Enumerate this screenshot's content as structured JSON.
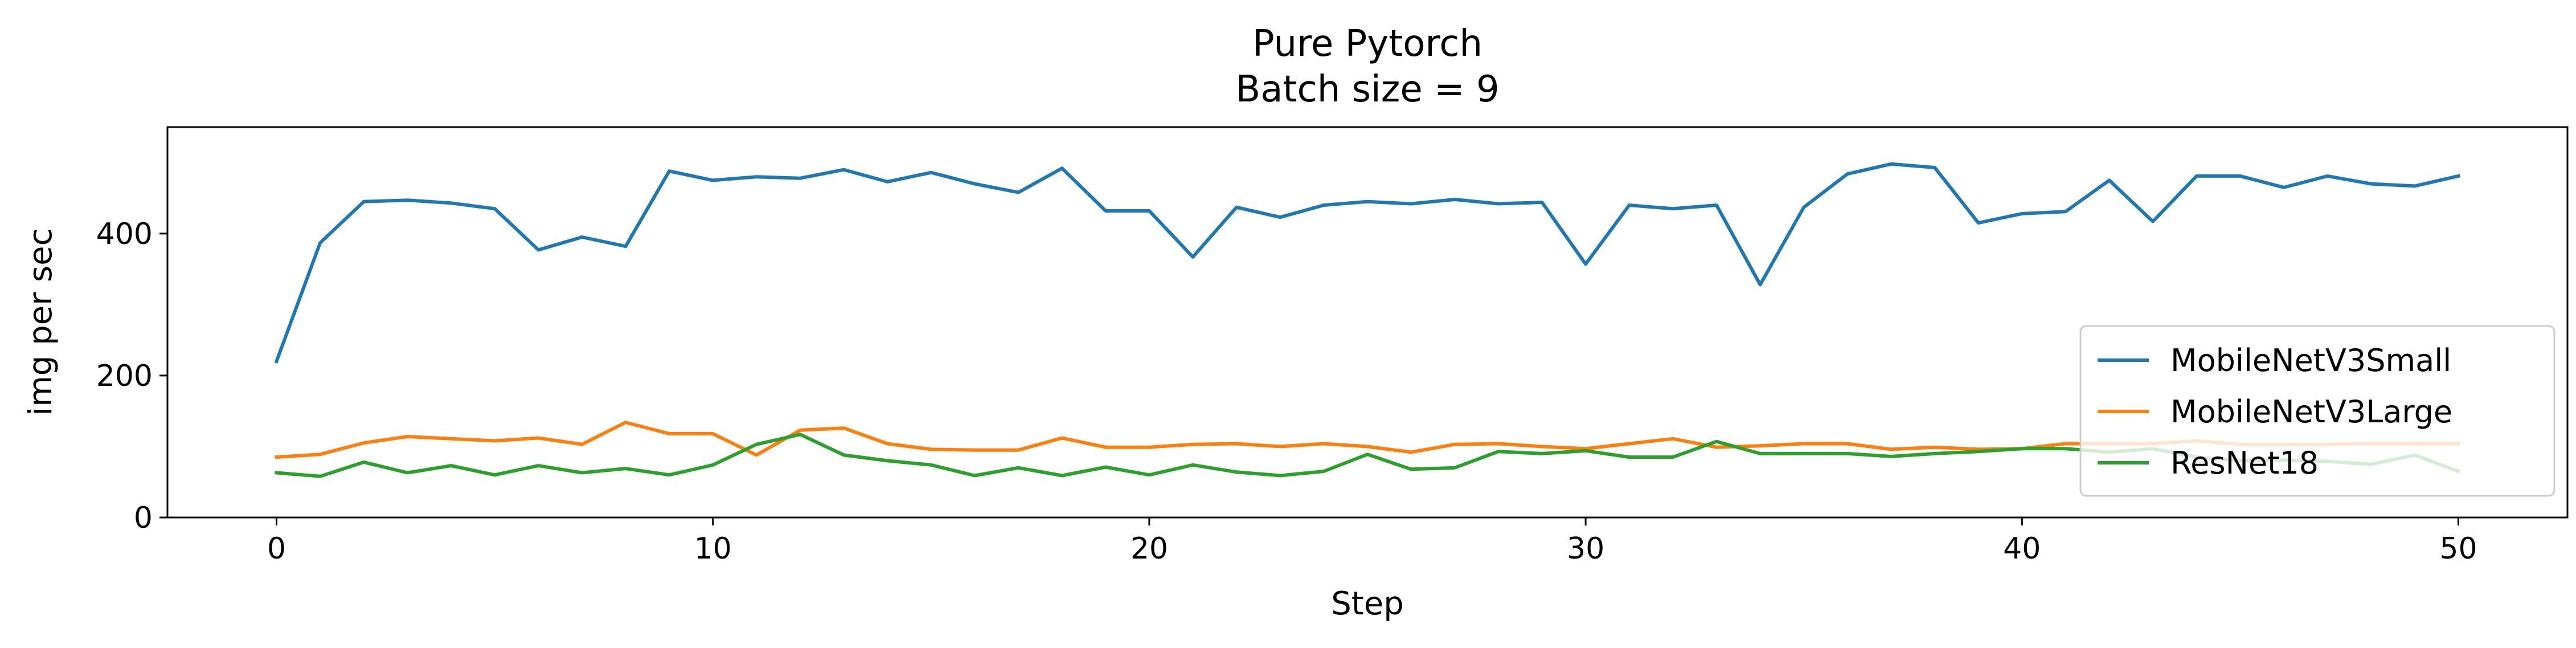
{
  "chart_data": {
    "type": "line",
    "title": "Pure Pytorch",
    "subtitle": "Batch size = 9",
    "xlabel": "Step",
    "ylabel": "img per sec",
    "xlim": [
      -2.5,
      52.5
    ],
    "ylim": [
      0,
      550
    ],
    "xticks": [
      0,
      10,
      20,
      30,
      40,
      50
    ],
    "yticks": [
      0,
      200,
      400
    ],
    "grid": false,
    "legend_position": "center-right",
    "x": [
      0,
      1,
      2,
      3,
      4,
      5,
      6,
      7,
      8,
      9,
      10,
      11,
      12,
      13,
      14,
      15,
      16,
      17,
      18,
      19,
      20,
      21,
      22,
      23,
      24,
      25,
      26,
      27,
      28,
      29,
      30,
      31,
      32,
      33,
      34,
      35,
      36,
      37,
      38,
      39,
      40,
      41,
      42,
      43,
      44,
      45,
      46,
      47,
      48,
      49,
      50
    ],
    "series": [
      {
        "name": "MobileNetV3Small",
        "color": "#1f77b4",
        "values": [
          220,
          387,
          445,
          447,
          443,
          435,
          377,
          395,
          382,
          488,
          475,
          480,
          478,
          490,
          473,
          486,
          470,
          458,
          492,
          432,
          432,
          367,
          437,
          423,
          440,
          445,
          442,
          448,
          442,
          444,
          357,
          440,
          435,
          440,
          328,
          437,
          484,
          498,
          493,
          415,
          428,
          431,
          475,
          417,
          481,
          481,
          465,
          481,
          470,
          467,
          481
        ]
      },
      {
        "name": "MobileNetV3Large",
        "color": "#ff7f0e",
        "values": [
          85,
          89,
          105,
          114,
          111,
          108,
          112,
          103,
          134,
          118,
          118,
          88,
          123,
          126,
          104,
          96,
          95,
          95,
          112,
          99,
          99,
          103,
          104,
          100,
          104,
          100,
          92,
          103,
          104,
          100,
          97,
          104,
          111,
          99,
          101,
          104,
          104,
          96,
          99,
          96,
          97,
          104,
          104,
          104,
          108,
          103,
          103,
          103,
          104,
          104,
          104
        ]
      },
      {
        "name": "ResNet18",
        "color": "#2ca02c",
        "values": [
          63,
          58,
          78,
          63,
          73,
          60,
          73,
          63,
          69,
          60,
          74,
          103,
          117,
          88,
          80,
          74,
          59,
          70,
          59,
          71,
          60,
          74,
          64,
          59,
          65,
          89,
          68,
          70,
          93,
          90,
          94,
          85,
          85,
          107,
          90,
          90,
          90,
          86,
          90,
          93,
          97,
          97,
          92,
          97,
          85,
          80,
          81,
          79,
          75,
          88,
          65
        ]
      }
    ]
  }
}
